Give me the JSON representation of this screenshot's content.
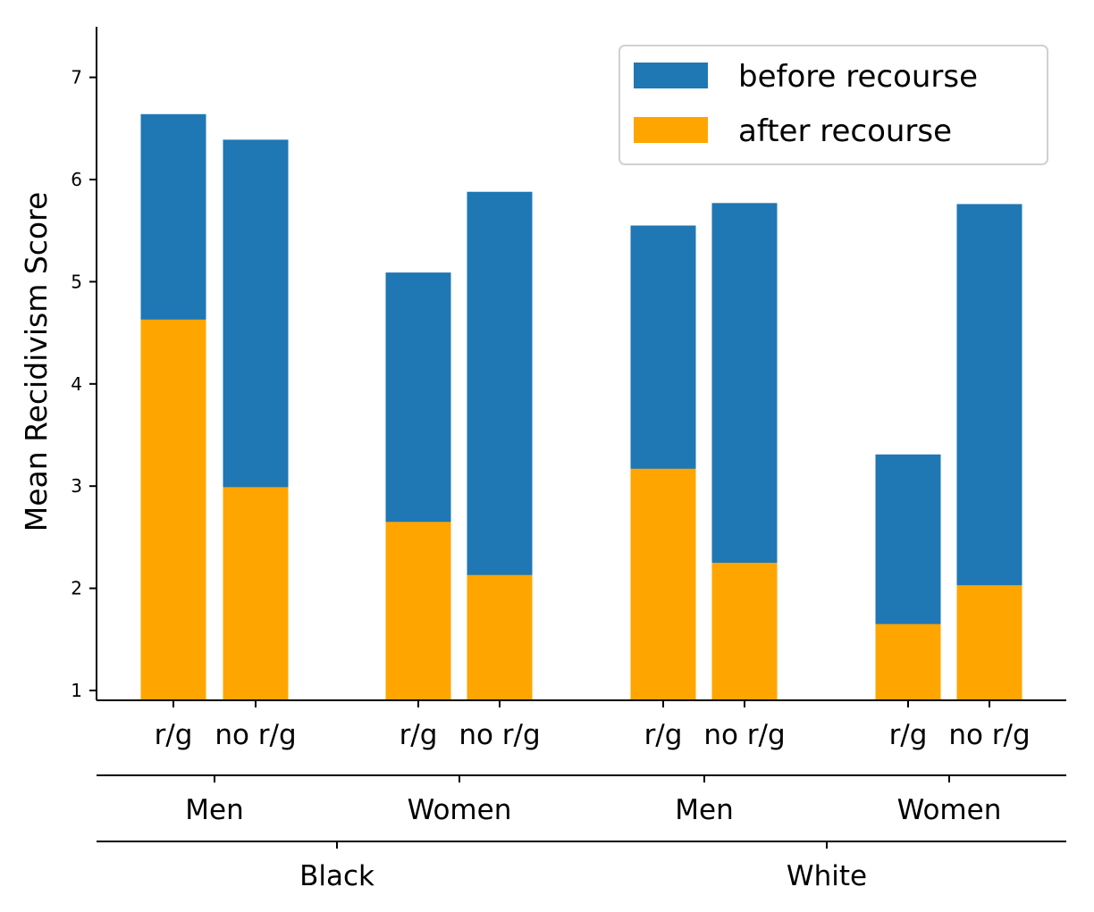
{
  "chart_data": {
    "type": "bar",
    "stacking": "overlay",
    "ylabel": "Mean Recidivism Score",
    "ylim": [
      0.9,
      7.5
    ],
    "yticks": [
      1,
      2,
      3,
      4,
      5,
      6,
      7
    ],
    "grid": false,
    "legend_position": "top-right",
    "colors": {
      "before recourse": "#1f77b4",
      "after recourse": "#ffa500"
    },
    "categories": [
      "r/g",
      "no r/g",
      "r/g",
      "no r/g",
      "r/g",
      "no r/g",
      "r/g",
      "no r/g"
    ],
    "subgroups": [
      "Men",
      "Women",
      "Men",
      "Women"
    ],
    "groups": [
      "Black",
      "White"
    ],
    "series": [
      {
        "name": "before recourse",
        "values": [
          6.64,
          6.39,
          5.09,
          5.88,
          5.55,
          5.77,
          3.31,
          5.76
        ]
      },
      {
        "name": "after recourse",
        "values": [
          4.63,
          2.99,
          2.65,
          2.13,
          3.17,
          2.25,
          1.65,
          2.03
        ]
      }
    ]
  }
}
